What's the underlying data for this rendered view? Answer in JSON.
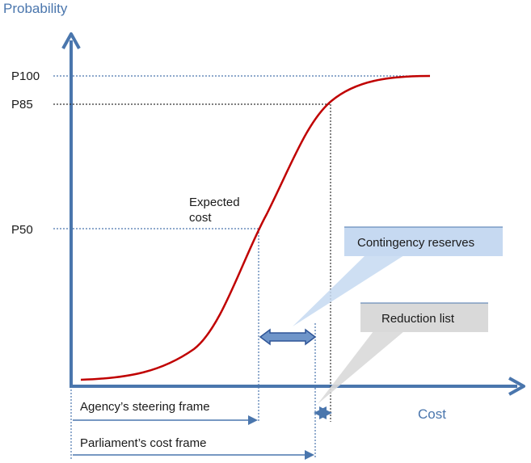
{
  "axes": {
    "y_title": "Probability",
    "x_title": "Cost"
  },
  "y_ticks": [
    "P100",
    "P85",
    "P50"
  ],
  "annotations": {
    "expected_cost_line1": "Expected",
    "expected_cost_line2": "cost"
  },
  "callouts": {
    "contingency": "Contingency reserves",
    "reduction": "Reduction list"
  },
  "frames": {
    "agency": "Agency’s steering frame",
    "parliament": "Parliament’s cost frame"
  },
  "colors": {
    "axis": "#4a76ad",
    "curve": "#c00000",
    "contingency_fill": "#c6d9f1",
    "reduction_fill": "#d9d9d9"
  }
}
